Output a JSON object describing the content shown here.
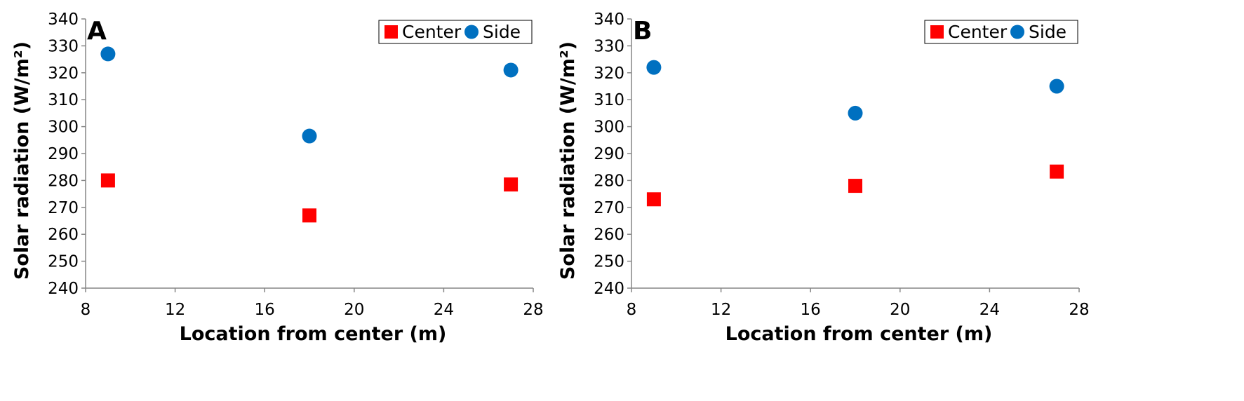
{
  "chart_data": [
    {
      "type": "scatter",
      "panel_label": "A",
      "xlabel": "Location from center (m)",
      "ylabel": "Solar radiation (W/m²)",
      "xlim": [
        8,
        28
      ],
      "ylim": [
        240,
        340
      ],
      "xticks": [
        8,
        12,
        16,
        20,
        24,
        28
      ],
      "yticks": [
        240,
        250,
        260,
        270,
        280,
        290,
        300,
        310,
        320,
        330,
        340
      ],
      "grid": false,
      "legend_position": "top-right",
      "series": [
        {
          "name": "Center",
          "marker": "square",
          "color": "#ff0000",
          "x": [
            9,
            18,
            27
          ],
          "y": [
            280,
            267,
            278.5
          ]
        },
        {
          "name": "Side",
          "marker": "circle",
          "color": "#0070c0",
          "x": [
            9,
            18,
            27
          ],
          "y": [
            327,
            296.5,
            321
          ]
        }
      ]
    },
    {
      "type": "scatter",
      "panel_label": "B",
      "xlabel": "Location from center (m)",
      "ylabel": "Solar radiation (W/m²)",
      "xlim": [
        8,
        28
      ],
      "ylim": [
        240,
        340
      ],
      "xticks": [
        8,
        12,
        16,
        20,
        24,
        28
      ],
      "yticks": [
        240,
        250,
        260,
        270,
        280,
        290,
        300,
        310,
        320,
        330,
        340
      ],
      "grid": false,
      "legend_position": "top-right",
      "series": [
        {
          "name": "Center",
          "marker": "square",
          "color": "#ff0000",
          "x": [
            9,
            18,
            27
          ],
          "y": [
            273,
            278,
            283.3
          ]
        },
        {
          "name": "Side",
          "marker": "circle",
          "color": "#0070c0",
          "x": [
            9,
            18,
            27
          ],
          "y": [
            322,
            305,
            315
          ]
        }
      ]
    }
  ]
}
